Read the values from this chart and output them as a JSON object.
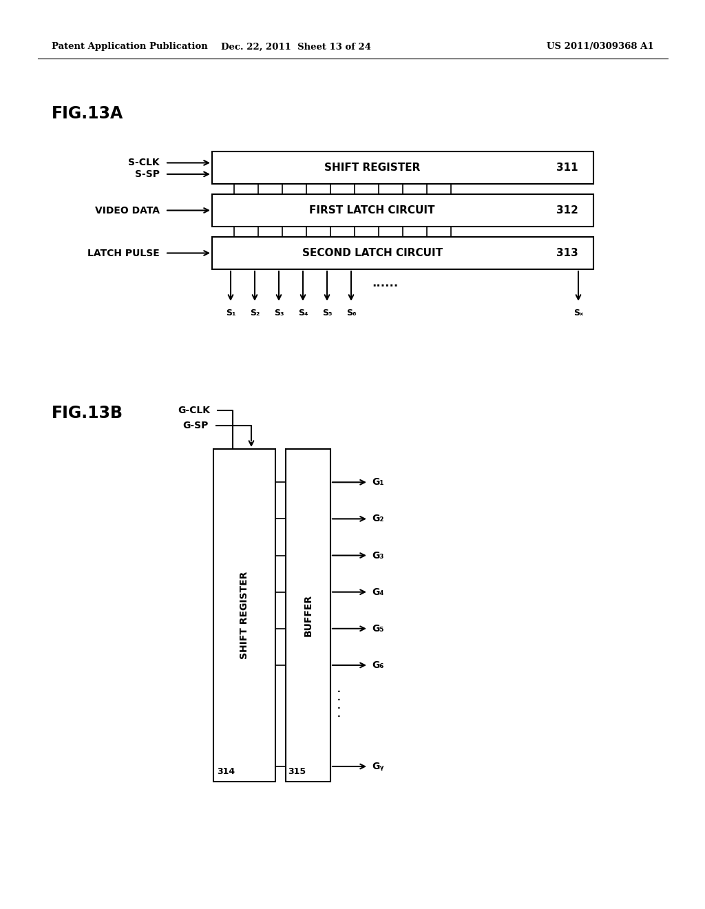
{
  "bg_color": "#ffffff",
  "header_left": "Patent Application Publication",
  "header_mid": "Dec. 22, 2011  Sheet 13 of 24",
  "header_right": "US 2011/0309368 A1",
  "fig13a_label": "FIG.13A",
  "fig13b_label": "FIG.13B",
  "block13a": {
    "shift_label": "SHIFT REGISTER",
    "shift_num": "311",
    "first_label": "FIRST LATCH CIRCUIT",
    "first_num": "312",
    "second_label": "SECOND LATCH CIRCUIT",
    "second_num": "313",
    "input_sclk": "S-CLK",
    "input_ssp": "S-SP",
    "input_video": "VIDEO DATA",
    "input_latch": "LATCH PULSE",
    "outputs": [
      "S₁",
      "S₂",
      "S₃",
      "S₄",
      "S₅",
      "S₆"
    ],
    "output_dots": "......",
    "output_sx": "Sₓ"
  },
  "block13b": {
    "sr_label": "SHIFT REGISTER",
    "buf_label": "BUFFER",
    "sr_num": "314",
    "buf_num": "315",
    "input_gclk": "G-CLK",
    "input_gsp": "G-SP",
    "outputs": [
      "G₁",
      "G₂",
      "G₃",
      "G₄",
      "G₅",
      "G₆"
    ],
    "output_gy": "Gᵧ"
  }
}
